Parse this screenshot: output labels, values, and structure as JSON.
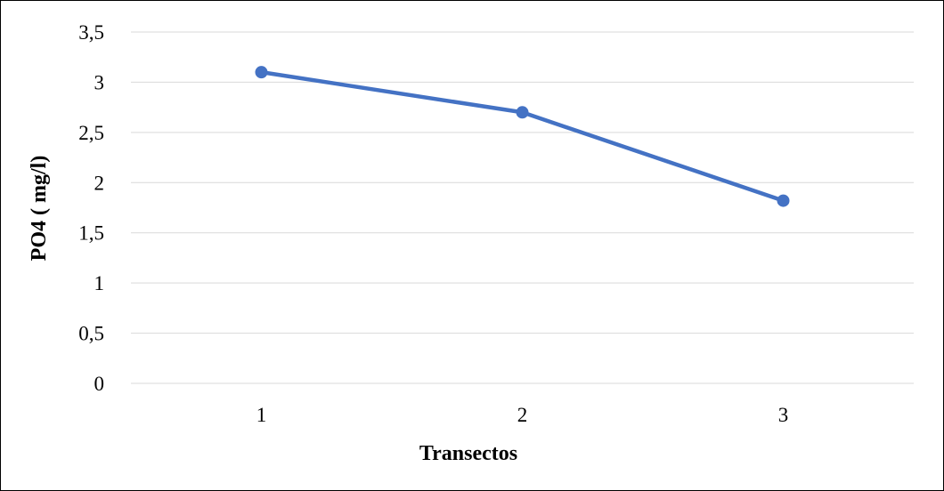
{
  "chart_data": {
    "type": "line",
    "title": "",
    "xlabel": "Transectos",
    "ylabel": "PO4 ( mg/l)",
    "categories": [
      "1",
      "2",
      "3"
    ],
    "series": [
      {
        "values": [
          3.1,
          2.7,
          1.82
        ],
        "color": "#4472C4"
      }
    ],
    "ylim": [
      0,
      3.5
    ],
    "yticks": [
      0,
      0.5,
      1,
      1.5,
      2,
      2.5,
      3,
      3.5
    ],
    "ytick_labels": [
      "0",
      "0,5",
      "1",
      "1,5",
      "2",
      "2,5",
      "3",
      "3,5"
    ],
    "grid": true,
    "legend": "none",
    "colors": {
      "series": "#4472C4",
      "gridline": "#D9D9D9",
      "frame": "#000000"
    }
  }
}
